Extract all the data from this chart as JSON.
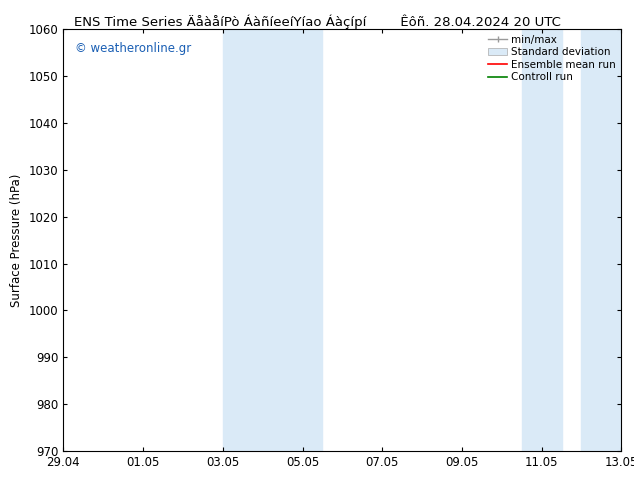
{
  "title_left": "ENS Time Series ÄåàåíPò ÁàñíeeíYíao Áàçípí",
  "title_right": "Êôñ. 28.04.2024 20 UTC",
  "ylabel": "Surface Pressure (hPa)",
  "xlabel_ticks": [
    "29.04",
    "01.05",
    "03.05",
    "05.05",
    "07.05",
    "09.05",
    "11.05",
    "13.05"
  ],
  "xtick_positions": [
    0,
    2,
    4,
    6,
    8,
    10,
    12,
    14
  ],
  "ylim": [
    970,
    1060
  ],
  "yticks": [
    970,
    980,
    990,
    1000,
    1010,
    1020,
    1030,
    1040,
    1050,
    1060
  ],
  "shaded_regions": [
    {
      "x_start": 4.0,
      "x_end": 6.5,
      "color": "#daeaf7"
    },
    {
      "x_start": 11.5,
      "x_end": 12.5,
      "color": "#daeaf7"
    },
    {
      "x_start": 13.0,
      "x_end": 14.0,
      "color": "#daeaf7"
    }
  ],
  "watermark_text": "© weatheronline.gr",
  "watermark_color": "#1a5fb4",
  "legend_labels": [
    "min/max",
    "Standard deviation",
    "Ensemble mean run",
    "Controll run"
  ],
  "background_color": "#ffffff",
  "plot_bg_color": "#ffffff",
  "border_color": "#000000",
  "tick_label_fontsize": 8.5,
  "title_fontsize": 9.5,
  "ylabel_fontsize": 8.5,
  "x_num_points": 14
}
